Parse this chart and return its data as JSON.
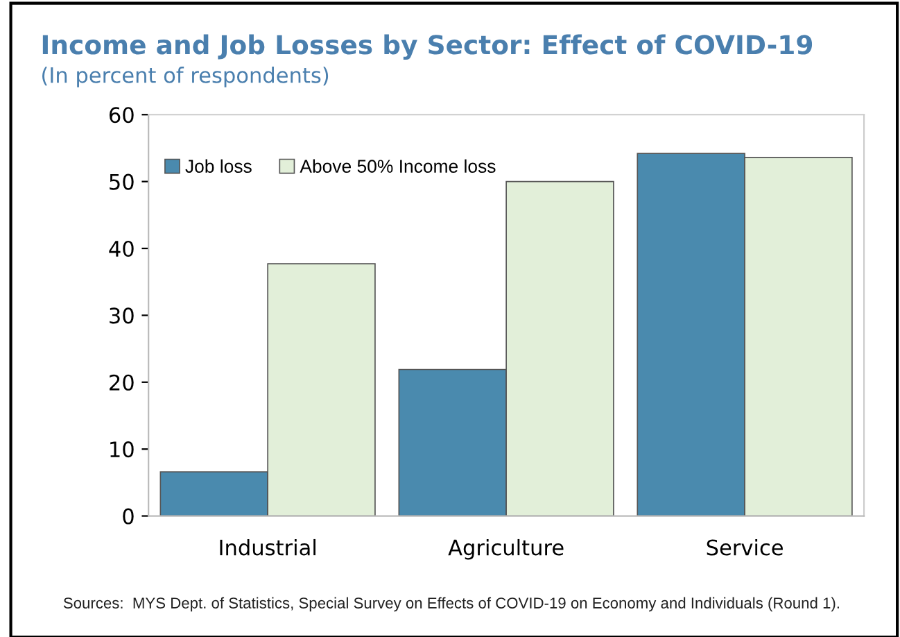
{
  "chart_data": {
    "type": "bar",
    "title": "Income and Job Losses by Sector: Effect of COVID-19",
    "subtitle": "(In percent of respondents)",
    "categories": [
      "Industrial",
      "Agriculture",
      "Service"
    ],
    "series": [
      {
        "name": "Job loss",
        "color": "#4a8aae",
        "values": [
          6.6,
          21.9,
          54.2
        ]
      },
      {
        "name": "Above 50% Income loss",
        "color": "#e2efd9",
        "values": [
          37.7,
          50.0,
          53.6
        ]
      }
    ],
    "ylim": [
      0,
      60
    ],
    "yticks": [
      0,
      10,
      20,
      30,
      40,
      50,
      60
    ],
    "grid": false,
    "legend": "top left",
    "annotations": [
      "Sources:  MYS Dept. of Statistics, Special Survey on Effects of COVID-19 on Economy and Individuals (Round 1)."
    ]
  }
}
